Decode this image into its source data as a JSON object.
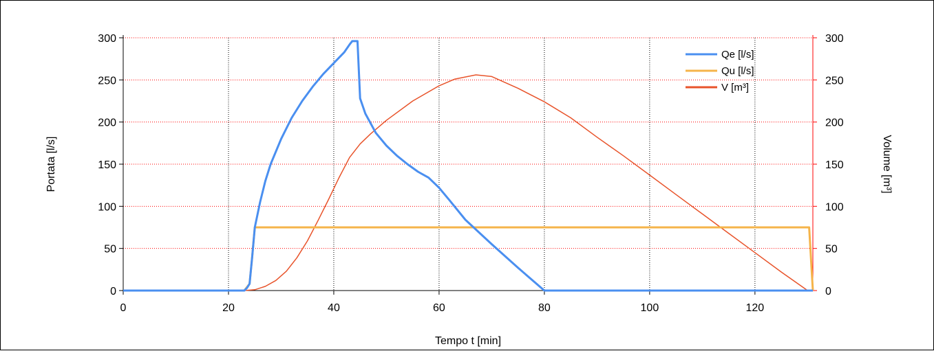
{
  "chart_data": {
    "type": "line",
    "xlabel": "Tempo t [min]",
    "ylabel": "Portata [l/s]",
    "y2label": "Volume [m³]",
    "xlim": [
      0,
      131
    ],
    "ylim": [
      0,
      300
    ],
    "y2lim": [
      0,
      300
    ],
    "xticks": [
      0,
      20,
      40,
      60,
      80,
      100,
      120
    ],
    "yticks": [
      0,
      50,
      100,
      150,
      200,
      250,
      300
    ],
    "y2ticks": [
      0,
      50,
      100,
      150,
      200,
      250,
      300
    ],
    "grid": true,
    "legend": "top-right",
    "colors": {
      "axis_left": "#000000",
      "axis_right": "#ff0000",
      "grid_vertical": "#000000",
      "grid_horizontal": "#ff0000"
    },
    "series": [
      {
        "name": "Qe [l/s]",
        "axis": "left",
        "color": "#4a8ff0",
        "width": 3,
        "points": [
          [
            0,
            0
          ],
          [
            23,
            0
          ],
          [
            23.5,
            3
          ],
          [
            24,
            8
          ],
          [
            24.5,
            40
          ],
          [
            25,
            75
          ],
          [
            26,
            105
          ],
          [
            27,
            130
          ],
          [
            28,
            150
          ],
          [
            30,
            180
          ],
          [
            32,
            205
          ],
          [
            34,
            225
          ],
          [
            36,
            242
          ],
          [
            38,
            257
          ],
          [
            40,
            270
          ],
          [
            42,
            283
          ],
          [
            43,
            292
          ],
          [
            43.5,
            296
          ],
          [
            44.5,
            296
          ],
          [
            45,
            228
          ],
          [
            46,
            210
          ],
          [
            48,
            187
          ],
          [
            50,
            172
          ],
          [
            52,
            160
          ],
          [
            54,
            150
          ],
          [
            56,
            141
          ],
          [
            58,
            134
          ],
          [
            60,
            122
          ],
          [
            62,
            107
          ],
          [
            65,
            84
          ],
          [
            70,
            55
          ],
          [
            75,
            27
          ],
          [
            80,
            0
          ],
          [
            131,
            0
          ]
        ]
      },
      {
        "name": "Qu [l/s]",
        "axis": "left",
        "color": "#f5b44a",
        "width": 3,
        "points": [
          [
            0,
            0
          ],
          [
            23,
            0
          ],
          [
            24,
            8
          ],
          [
            24.5,
            40
          ],
          [
            25,
            75
          ],
          [
            130.3,
            75
          ],
          [
            131,
            0
          ]
        ]
      },
      {
        "name": "V [m³]",
        "axis": "right",
        "color": "#e8532a",
        "width": 1.5,
        "points": [
          [
            23,
            0
          ],
          [
            25,
            1
          ],
          [
            27,
            5
          ],
          [
            29,
            12
          ],
          [
            31,
            23
          ],
          [
            33,
            39
          ],
          [
            35,
            59
          ],
          [
            37,
            83
          ],
          [
            39,
            108
          ],
          [
            41,
            134
          ],
          [
            43,
            158
          ],
          [
            45,
            174
          ],
          [
            47,
            186
          ],
          [
            50,
            202
          ],
          [
            55,
            225
          ],
          [
            60,
            243
          ],
          [
            63,
            251
          ],
          [
            67,
            256
          ],
          [
            70,
            254
          ],
          [
            75,
            240
          ],
          [
            80,
            224
          ],
          [
            85,
            205
          ],
          [
            90,
            182
          ],
          [
            95,
            160
          ],
          [
            100,
            137
          ],
          [
            105,
            114
          ],
          [
            110,
            91
          ],
          [
            115,
            68
          ],
          [
            120,
            45
          ],
          [
            125,
            22
          ],
          [
            130,
            0
          ],
          [
            131,
            0
          ]
        ]
      }
    ]
  }
}
